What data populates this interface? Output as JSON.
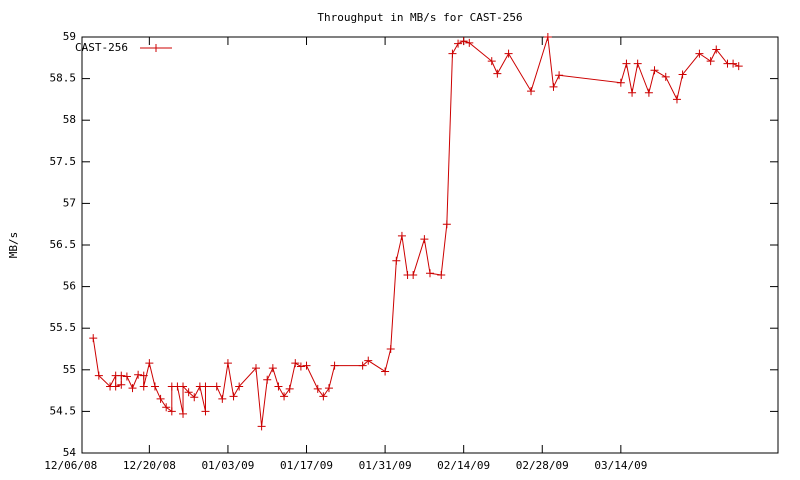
{
  "chart_data": {
    "type": "line",
    "title": "Throughput in MB/s for CAST-256",
    "y_label": "MB/s",
    "legend": "top-left",
    "x": [
      "2008-12-10",
      "2008-12-11",
      "2008-12-13",
      "2008-12-14",
      "2008-12-14",
      "2008-12-15",
      "2008-12-15",
      "2008-12-16",
      "2008-12-17",
      "2008-12-18",
      "2008-12-19",
      "2008-12-19",
      "2008-12-20",
      "2008-12-21",
      "2008-12-22",
      "2008-12-23",
      "2008-12-24",
      "2008-12-24",
      "2008-12-25",
      "2008-12-26",
      "2008-12-26",
      "2008-12-27",
      "2008-12-28",
      "2008-12-29",
      "2008-12-30",
      "2008-12-30",
      "2009-01-01",
      "2009-01-02",
      "2009-01-03",
      "2009-01-04",
      "2009-01-05",
      "2009-01-08",
      "2009-01-09",
      "2009-01-10",
      "2009-01-11",
      "2009-01-12",
      "2009-01-13",
      "2009-01-14",
      "2009-01-15",
      "2009-01-16",
      "2009-01-17",
      "2009-01-19",
      "2009-01-20",
      "2009-01-21",
      "2009-01-22",
      "2009-01-27",
      "2009-01-28",
      "2009-01-31",
      "2009-02-01",
      "2009-02-02",
      "2009-02-03",
      "2009-02-04",
      "2009-02-05",
      "2009-02-07",
      "2009-02-08",
      "2009-02-10",
      "2009-02-11",
      "2009-02-12",
      "2009-02-13",
      "2009-02-14",
      "2009-02-15",
      "2009-02-19",
      "2009-02-20",
      "2009-02-22",
      "2009-02-26",
      "2009-03-01",
      "2009-03-02",
      "2009-03-03",
      "2009-03-14",
      "2009-03-15",
      "2009-03-16",
      "2009-03-17",
      "2009-03-19",
      "2009-03-20",
      "2009-03-22",
      "2009-03-24",
      "2009-03-25",
      "2009-03-28",
      "2009-03-30",
      "2009-03-31",
      "2009-04-02",
      "2009-04-03",
      "2009-04-04"
    ],
    "series": [
      {
        "name": "CAST-256",
        "color": "#cc0000",
        "values": [
          55.38,
          54.93,
          54.8,
          54.93,
          54.8,
          54.82,
          54.93,
          54.92,
          54.78,
          54.94,
          54.93,
          54.8,
          55.08,
          54.8,
          54.65,
          54.55,
          54.5,
          54.8,
          54.8,
          54.47,
          54.8,
          54.73,
          54.67,
          54.8,
          54.5,
          54.8,
          54.8,
          54.65,
          55.08,
          54.68,
          54.8,
          55.02,
          54.32,
          54.88,
          55.02,
          54.8,
          54.68,
          54.77,
          55.08,
          55.04,
          55.05,
          54.77,
          54.68,
          54.78,
          55.05,
          55.05,
          55.11,
          54.98,
          55.25,
          56.31,
          56.61,
          56.14,
          56.14,
          56.57,
          56.16,
          56.14,
          56.75,
          58.8,
          58.92,
          58.95,
          58.93,
          58.71,
          58.56,
          58.8,
          58.35,
          59.0,
          58.4,
          58.54,
          58.45,
          58.68,
          58.33,
          58.68,
          58.33,
          58.6,
          58.52,
          58.25,
          58.55,
          58.8,
          58.71,
          58.85,
          58.68,
          58.68,
          58.65
        ]
      }
    ],
    "xlim": [
      "2008-12-08",
      "2009-04-11"
    ],
    "xticks": [
      {
        "value": "2008-12-06",
        "label": "12/06/08"
      },
      {
        "value": "2008-12-20",
        "label": "12/20/08"
      },
      {
        "value": "2009-01-03",
        "label": "01/03/09"
      },
      {
        "value": "2009-01-17",
        "label": "01/17/09"
      },
      {
        "value": "2009-01-31",
        "label": "01/31/09"
      },
      {
        "value": "2009-02-14",
        "label": "02/14/09"
      },
      {
        "value": "2009-02-28",
        "label": "02/28/09"
      },
      {
        "value": "2009-03-14",
        "label": "03/14/09"
      }
    ],
    "ylim": [
      54,
      59
    ],
    "yticks": [
      54,
      54.5,
      55,
      55.5,
      56,
      56.5,
      57,
      57.5,
      58,
      58.5,
      59
    ],
    "grid": false
  }
}
